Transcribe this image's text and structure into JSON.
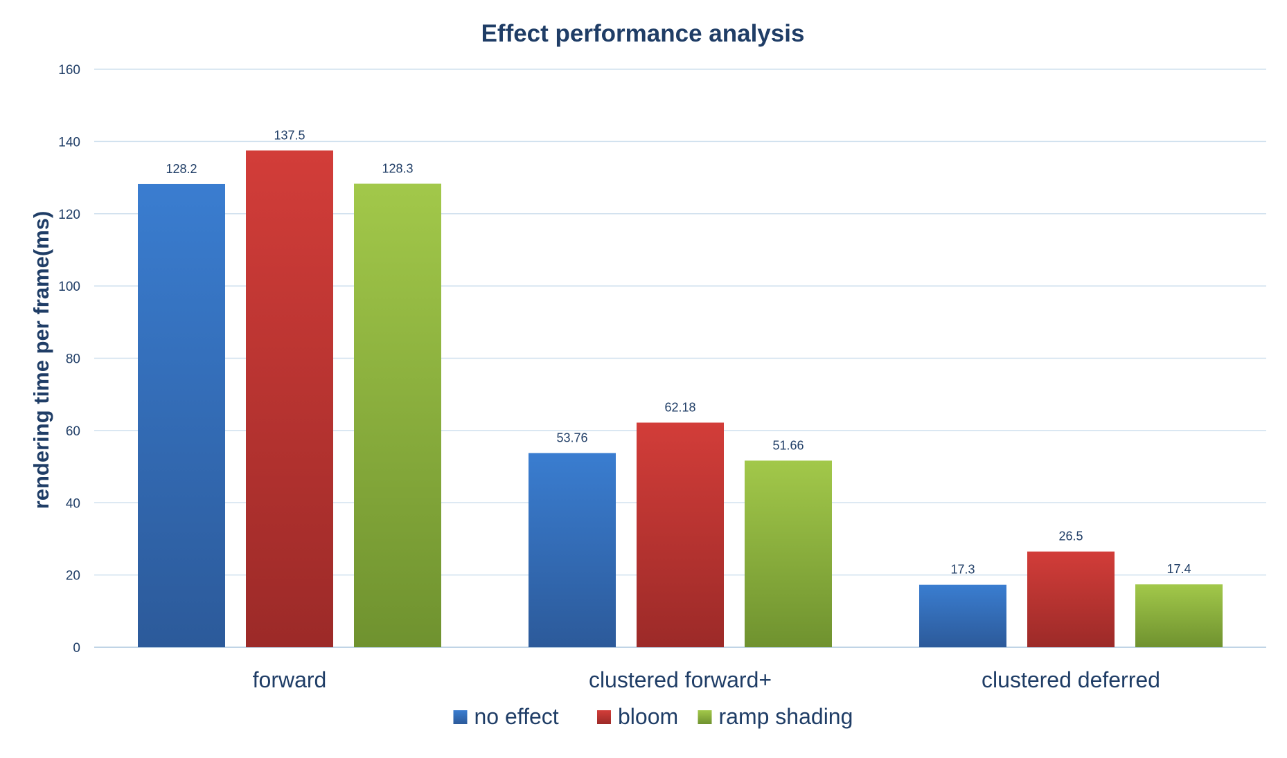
{
  "chart_data": {
    "type": "bar",
    "title": "Effect performance analysis",
    "xlabel": "",
    "ylabel": "rendering time per frame(ms)",
    "categories": [
      "forward",
      "clustered forward+",
      "clustered deferred"
    ],
    "series": [
      {
        "name": "no effect",
        "values": [
          128.2,
          53.76,
          17.3
        ],
        "labels": [
          "128.2",
          "53.76",
          "17.3"
        ],
        "color": "#3a7dd0",
        "color_dark": "#2c5a9a"
      },
      {
        "name": "bloom",
        "values": [
          137.5,
          62.18,
          26.5
        ],
        "labels": [
          "137.5",
          "62.18",
          "26.5"
        ],
        "color": "#d23d39",
        "color_dark": "#9c2a28"
      },
      {
        "name": "ramp shading",
        "values": [
          128.3,
          51.66,
          17.4
        ],
        "labels": [
          "128.3",
          "51.66",
          "17.4"
        ],
        "color": "#a2c84a",
        "color_dark": "#6f922f"
      }
    ],
    "ylim": [
      0,
      160
    ],
    "yticks": [
      0,
      20,
      40,
      60,
      80,
      100,
      120,
      140,
      160
    ],
    "grid": true,
    "legend_position": "bottom"
  }
}
